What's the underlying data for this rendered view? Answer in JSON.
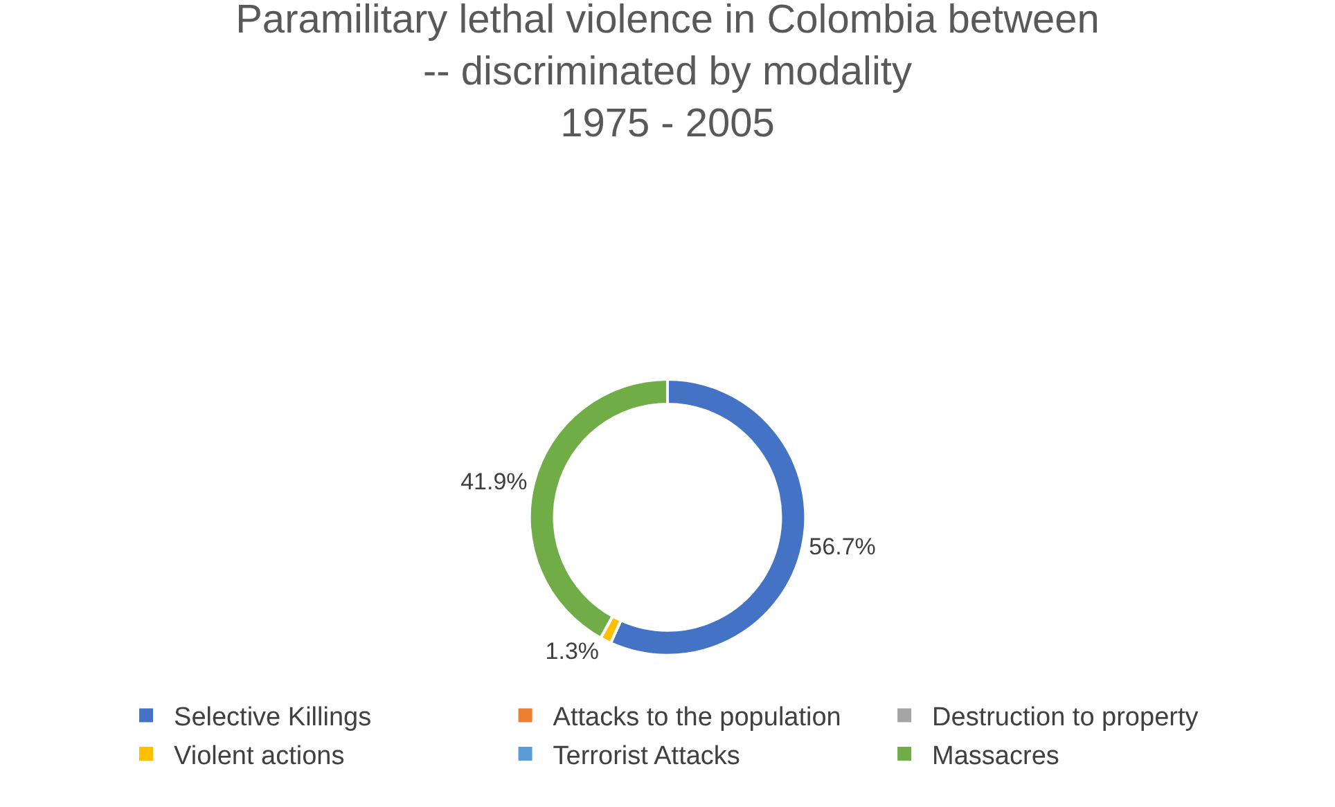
{
  "chart_data": {
    "type": "donut",
    "title": "Paramilitary lethal violence in Colombia between\n-- discriminated by modality\n1975 - 2005",
    "categories": [
      "Selective Killings",
      "Attacks to the population",
      "Destruction to property",
      "Violent actions",
      "Terrorist Attacks",
      "Massacres"
    ],
    "values": [
      56.7,
      0,
      0,
      1.3,
      0,
      41.9
    ],
    "colors": [
      "#4472c4",
      "#ed7d31",
      "#a5a5a5",
      "#ffc000",
      "#5b9bd5",
      "#70ad47"
    ],
    "value_labels": [
      "56.7%",
      null,
      null,
      "1.3%",
      null,
      "41.9%"
    ],
    "legend": "bottom"
  }
}
